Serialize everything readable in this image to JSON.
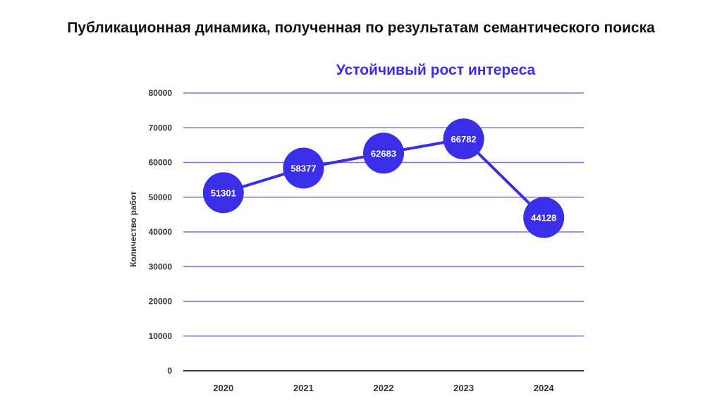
{
  "page": {
    "title": "Публикационная динамика, полученная по результатам семантического поиска",
    "subtitle": "Устойчивый рост интереса"
  },
  "colors": {
    "accent": "#3a2ee8",
    "grid": "#7b73e0",
    "axis": "#333333"
  },
  "chart_data": {
    "type": "line",
    "title": "Публикационная динамика, полученная по результатам семантического поиска",
    "subtitle": "Устойчивый рост интереса",
    "xlabel": "",
    "ylabel": "Количество работ",
    "categories": [
      "2020",
      "2021",
      "2022",
      "2023",
      "2024"
    ],
    "series": [
      {
        "values": [
          51301,
          58377,
          62683,
          66782,
          44128
        ]
      }
    ],
    "data_labels": [
      "51301",
      "58377",
      "62683",
      "66782",
      "44128"
    ],
    "ylim": [
      0,
      80000
    ],
    "yticks": [
      "0",
      "10000",
      "20000",
      "30000",
      "40000",
      "50000",
      "60000",
      "70000",
      "80000"
    ],
    "grid": true,
    "legend": "none"
  }
}
